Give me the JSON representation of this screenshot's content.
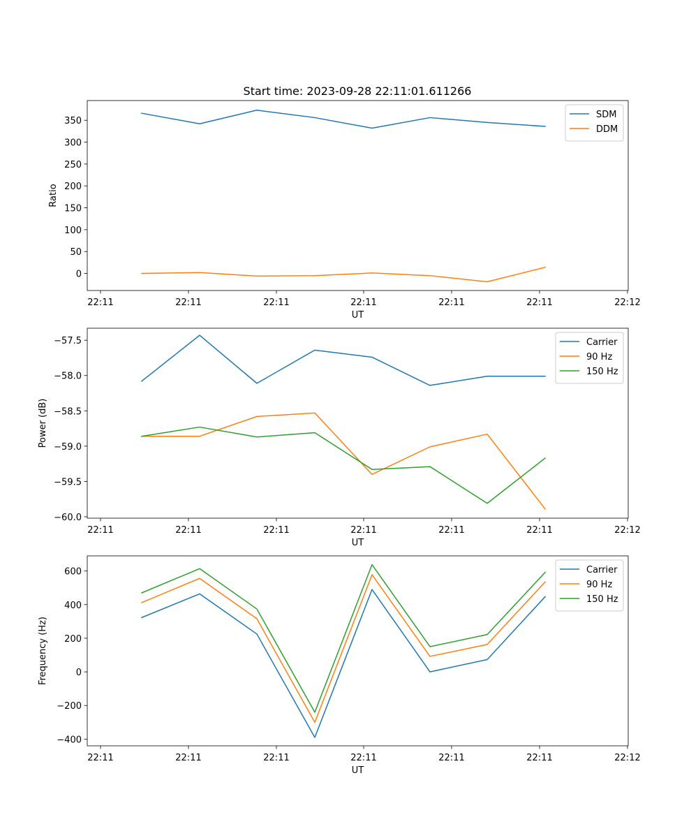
{
  "chart_data": [
    {
      "type": "line",
      "title": "Start time: 2023-09-28 22:11:01.611266",
      "xlabel": "UT",
      "ylabel": "Ratio",
      "x_tick_labels": [
        "22:11",
        "22:11",
        "22:11",
        "22:11",
        "22:11",
        "22:11",
        "22:12"
      ],
      "yticks": [
        0,
        50,
        100,
        150,
        200,
        250,
        300,
        350
      ],
      "ylim": [
        -39,
        395
      ],
      "legend_position": "top-right",
      "series": [
        {
          "name": "SDM",
          "color": "#1f77b4",
          "values": [
            366,
            342,
            373,
            356,
            332,
            356,
            345,
            336
          ]
        },
        {
          "name": "DDM",
          "color": "#ff7f0e",
          "values": [
            0,
            2,
            -6,
            -5,
            1,
            -5,
            -19,
            14
          ]
        }
      ]
    },
    {
      "type": "line",
      "title": "",
      "xlabel": "UT",
      "ylabel": "Power (dB)",
      "x_tick_labels": [
        "22:11",
        "22:11",
        "22:11",
        "22:11",
        "22:11",
        "22:11",
        "22:12"
      ],
      "yticks": [
        -60.0,
        -59.5,
        -59.0,
        -58.5,
        -58.0,
        -57.5
      ],
      "ytick_labels": [
        "−60.0",
        "−59.5",
        "−59.0",
        "−58.5",
        "−58.0",
        "−57.5"
      ],
      "ylim": [
        -60.02,
        -57.33
      ],
      "legend_position": "top-right",
      "series": [
        {
          "name": "Carrier",
          "color": "#1f77b4",
          "values": [
            -58.08,
            -57.43,
            -58.11,
            -57.64,
            -57.74,
            -58.14,
            -58.01,
            -58.01
          ]
        },
        {
          "name": "90 Hz",
          "color": "#ff7f0e",
          "values": [
            -58.86,
            -58.86,
            -58.58,
            -58.53,
            -59.4,
            -59.01,
            -58.83,
            -59.89
          ]
        },
        {
          "name": "150 Hz",
          "color": "#2ca02c",
          "values": [
            -58.86,
            -58.73,
            -58.87,
            -58.81,
            -59.33,
            -59.29,
            -59.81,
            -59.17
          ]
        }
      ]
    },
    {
      "type": "line",
      "title": "",
      "xlabel": "UT",
      "ylabel": "Frequency (Hz)",
      "x_tick_labels": [
        "22:11",
        "22:11",
        "22:11",
        "22:11",
        "22:11",
        "22:11",
        "22:12"
      ],
      "yticks": [
        -400,
        -200,
        0,
        200,
        400,
        600
      ],
      "ytick_labels": [
        "−400",
        "−200",
        "0",
        "200",
        "400",
        "600"
      ],
      "ylim": [
        -440,
        690
      ],
      "legend_position": "top-right",
      "series": [
        {
          "name": "Carrier",
          "color": "#1f77b4",
          "values": [
            323,
            464,
            225,
            -390,
            490,
            0,
            73,
            447
          ]
        },
        {
          "name": "90 Hz",
          "color": "#ff7f0e",
          "values": [
            412,
            556,
            316,
            -300,
            578,
            92,
            163,
            535
          ]
        },
        {
          "name": "150 Hz",
          "color": "#2ca02c",
          "values": [
            470,
            614,
            374,
            -240,
            638,
            150,
            222,
            592
          ]
        }
      ]
    }
  ]
}
